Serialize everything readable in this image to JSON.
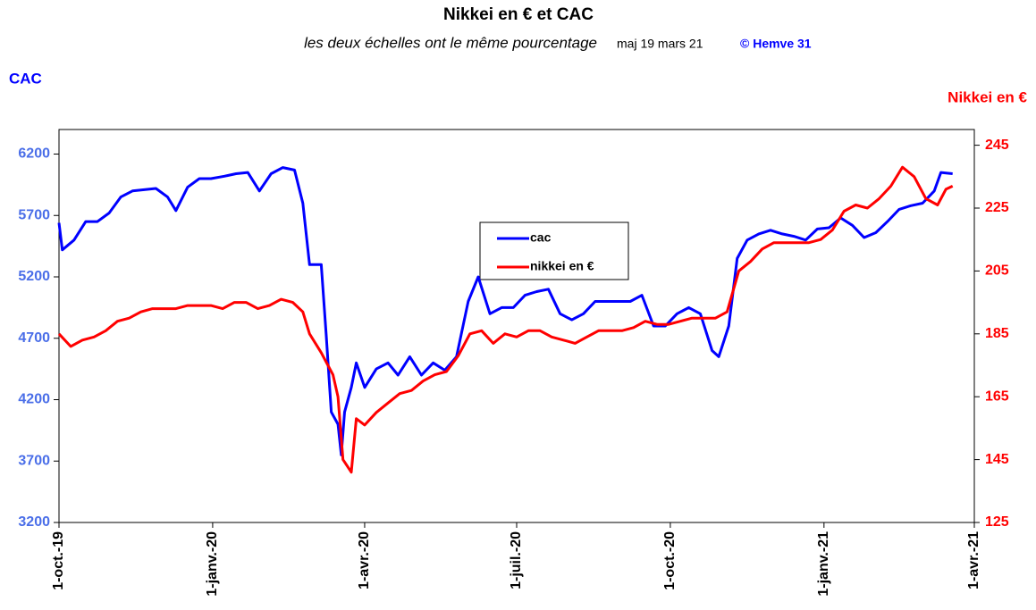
{
  "chart_data": {
    "type": "line",
    "title": "Nikkei en € et CAC",
    "subtitle": "les deux échelles ont le même pourcentage",
    "update": "maj 19 mars 21",
    "credit": "© Hemve 31",
    "ylabel": "CAC",
    "y2label": "Nikkei en €",
    "xlim": [
      "2019-10-01",
      "2021-04-01"
    ],
    "xticks": [
      {
        "value": "2019-10-01",
        "label": "1-oct.-19"
      },
      {
        "value": "2020-01-01",
        "label": "1-janv.-20"
      },
      {
        "value": "2020-04-01",
        "label": "1-avr.-20"
      },
      {
        "value": "2020-07-01",
        "label": "1-juil.-20"
      },
      {
        "value": "2020-10-01",
        "label": "1-oct.-20"
      },
      {
        "value": "2021-01-01",
        "label": "1-janv.-21"
      },
      {
        "value": "2021-04-01",
        "label": "1-avr.-21"
      }
    ],
    "ylim": [
      3200,
      6400
    ],
    "yticks": [
      3200,
      3700,
      4200,
      4700,
      5200,
      5700,
      6200
    ],
    "y2lim": [
      125,
      250
    ],
    "y2ticks": [
      125,
      145,
      165,
      185,
      205,
      225,
      245
    ],
    "series": [
      {
        "name": "cac",
        "color": "#0000ff",
        "axis": "y",
        "x": [
          "2019-10-01",
          "2019-10-03",
          "2019-10-10",
          "2019-10-17",
          "2019-10-24",
          "2019-10-31",
          "2019-11-07",
          "2019-11-14",
          "2019-11-21",
          "2019-11-28",
          "2019-12-05",
          "2019-12-10",
          "2019-12-17",
          "2019-12-24",
          "2019-12-31",
          "2020-01-08",
          "2020-01-15",
          "2020-01-22",
          "2020-01-29",
          "2020-02-05",
          "2020-02-12",
          "2020-02-19",
          "2020-02-24",
          "2020-02-28",
          "2020-03-06",
          "2020-03-09",
          "2020-03-12",
          "2020-03-16",
          "2020-03-18",
          "2020-03-20",
          "2020-03-24",
          "2020-03-27",
          "2020-04-01",
          "2020-04-08",
          "2020-04-15",
          "2020-04-21",
          "2020-04-28",
          "2020-05-05",
          "2020-05-12",
          "2020-05-19",
          "2020-05-26",
          "2020-06-02",
          "2020-06-08",
          "2020-06-15",
          "2020-06-22",
          "2020-06-29",
          "2020-07-06",
          "2020-07-13",
          "2020-07-20",
          "2020-07-27",
          "2020-08-03",
          "2020-08-10",
          "2020-08-17",
          "2020-08-24",
          "2020-08-31",
          "2020-09-07",
          "2020-09-14",
          "2020-09-21",
          "2020-09-28",
          "2020-10-05",
          "2020-10-12",
          "2020-10-19",
          "2020-10-26",
          "2020-10-30",
          "2020-11-05",
          "2020-11-10",
          "2020-11-16",
          "2020-11-23",
          "2020-11-30",
          "2020-12-07",
          "2020-12-14",
          "2020-12-21",
          "2020-12-28",
          "2021-01-04",
          "2021-01-11",
          "2021-01-18",
          "2021-01-25",
          "2021-02-01",
          "2021-02-08",
          "2021-02-15",
          "2021-02-22",
          "2021-03-01",
          "2021-03-08",
          "2021-03-12",
          "2021-03-19"
        ],
        "values": [
          5640,
          5420,
          5500,
          5650,
          5650,
          5720,
          5850,
          5900,
          5910,
          5920,
          5850,
          5740,
          5930,
          6000,
          6000,
          6020,
          6040,
          6050,
          5900,
          6040,
          6090,
          6070,
          5800,
          5300,
          5300,
          4720,
          4100,
          4000,
          3750,
          4100,
          4300,
          4500,
          4300,
          4450,
          4500,
          4400,
          4550,
          4400,
          4500,
          4440,
          4550,
          5000,
          5200,
          4900,
          4950,
          4950,
          5050,
          5080,
          5100,
          4900,
          4850,
          4900,
          5000,
          5000,
          5000,
          5000,
          5050,
          4800,
          4800,
          4900,
          4950,
          4900,
          4600,
          4550,
          4800,
          5350,
          5500,
          5550,
          5580,
          5550,
          5530,
          5500,
          5590,
          5600,
          5680,
          5620,
          5520,
          5560,
          5650,
          5750,
          5780,
          5800,
          5900,
          6050,
          6040
        ]
      },
      {
        "name": "nikkei en €",
        "color": "#ff0000",
        "axis": "y2",
        "x": [
          "2019-10-01",
          "2019-10-08",
          "2019-10-15",
          "2019-10-22",
          "2019-10-29",
          "2019-11-05",
          "2019-11-12",
          "2019-11-19",
          "2019-11-26",
          "2019-12-03",
          "2019-12-10",
          "2019-12-17",
          "2019-12-24",
          "2019-12-31",
          "2020-01-07",
          "2020-01-14",
          "2020-01-21",
          "2020-01-28",
          "2020-02-04",
          "2020-02-11",
          "2020-02-18",
          "2020-02-24",
          "2020-02-28",
          "2020-03-06",
          "2020-03-09",
          "2020-03-13",
          "2020-03-16",
          "2020-03-19",
          "2020-03-24",
          "2020-03-27",
          "2020-04-01",
          "2020-04-08",
          "2020-04-15",
          "2020-04-22",
          "2020-04-29",
          "2020-05-06",
          "2020-05-13",
          "2020-05-20",
          "2020-05-27",
          "2020-06-03",
          "2020-06-10",
          "2020-06-17",
          "2020-06-24",
          "2020-07-01",
          "2020-07-08",
          "2020-07-15",
          "2020-07-22",
          "2020-07-29",
          "2020-08-05",
          "2020-08-12",
          "2020-08-19",
          "2020-08-26",
          "2020-09-02",
          "2020-09-09",
          "2020-09-16",
          "2020-09-23",
          "2020-09-30",
          "2020-10-07",
          "2020-10-14",
          "2020-10-21",
          "2020-10-28",
          "2020-11-04",
          "2020-11-11",
          "2020-11-18",
          "2020-11-25",
          "2020-12-02",
          "2020-12-09",
          "2020-12-16",
          "2020-12-23",
          "2020-12-30",
          "2021-01-06",
          "2021-01-13",
          "2021-01-20",
          "2021-01-27",
          "2021-02-03",
          "2021-02-10",
          "2021-02-17",
          "2021-02-24",
          "2021-03-03",
          "2021-03-10",
          "2021-03-15",
          "2021-03-19"
        ],
        "values": [
          185,
          181,
          183,
          184,
          186,
          189,
          190,
          192,
          193,
          193,
          193,
          194,
          194,
          194,
          193,
          195,
          195,
          193,
          194,
          196,
          195,
          192,
          185,
          179,
          176,
          172,
          165,
          145,
          141,
          158,
          156,
          160,
          163,
          166,
          167,
          170,
          172,
          173,
          178,
          185,
          186,
          182,
          185,
          184,
          186,
          186,
          184,
          183,
          182,
          184,
          186,
          186,
          186,
          187,
          189,
          188,
          188,
          189,
          190,
          190,
          190,
          192,
          205,
          208,
          212,
          214,
          214,
          214,
          214,
          215,
          218,
          224,
          226,
          225,
          228,
          232,
          238,
          235,
          228,
          226,
          231,
          232
        ]
      }
    ]
  }
}
